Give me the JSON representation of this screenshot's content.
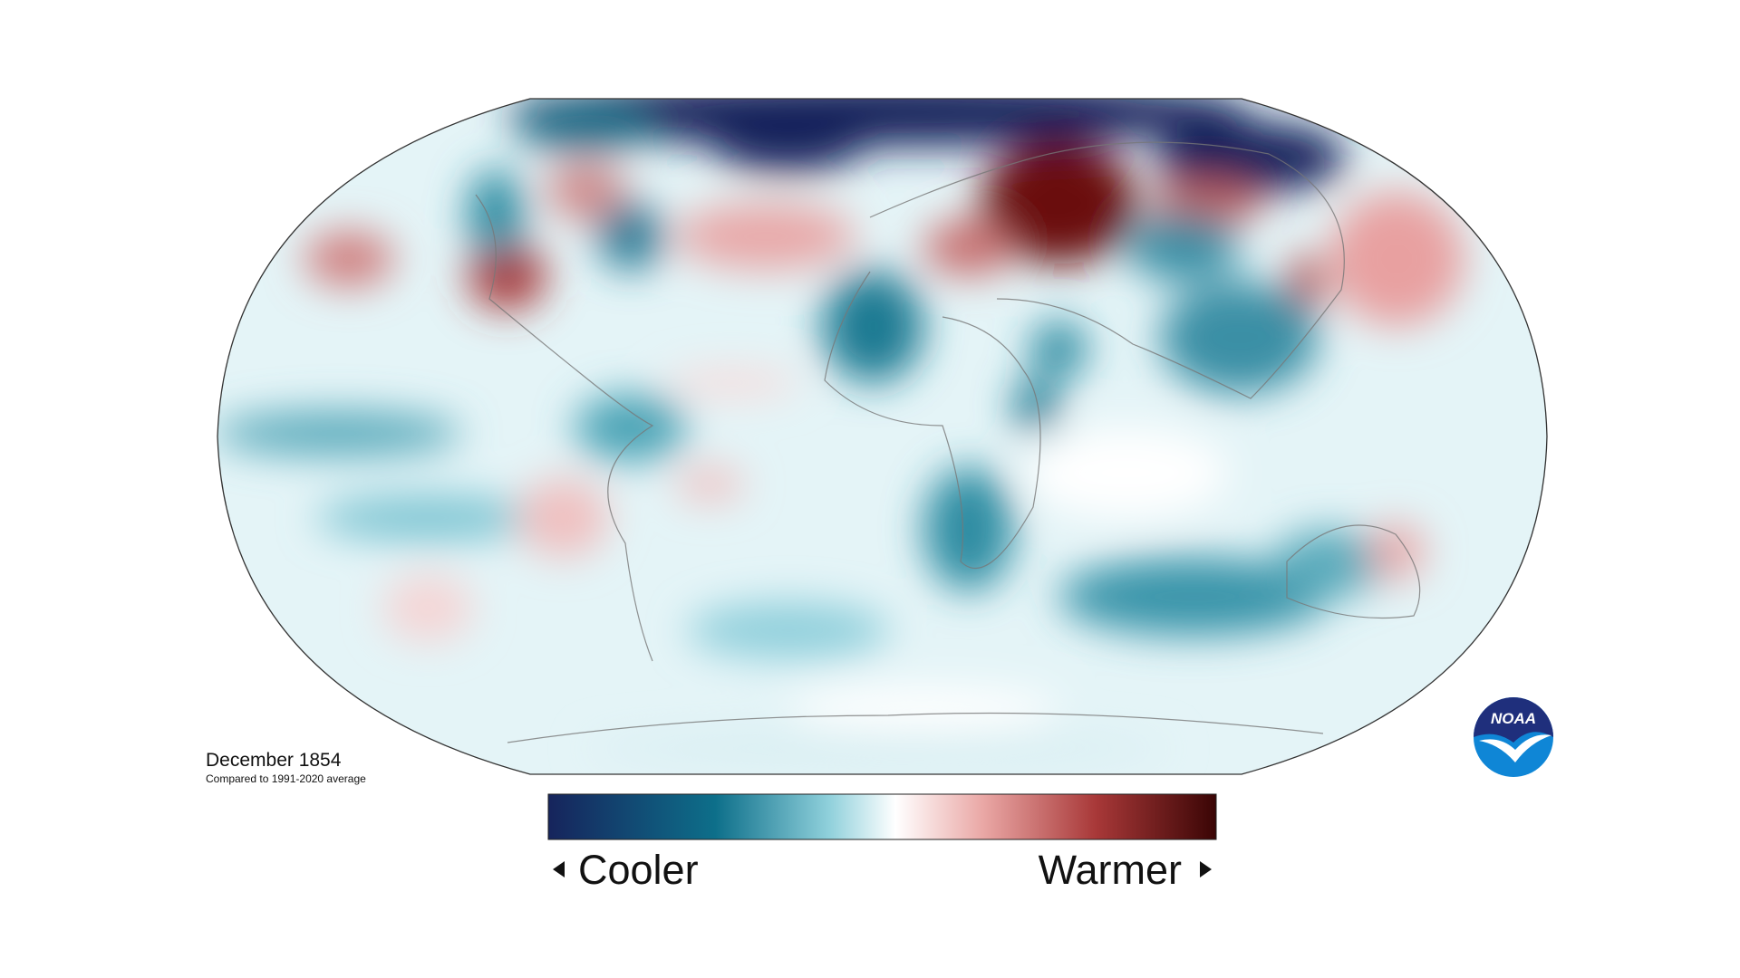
{
  "title": "December 1854",
  "subtitle": "Compared to 1991-2020 average",
  "legend": {
    "low_label": "Cooler",
    "high_label": "Warmer"
  },
  "logo": {
    "text": "NOAA"
  }
}
